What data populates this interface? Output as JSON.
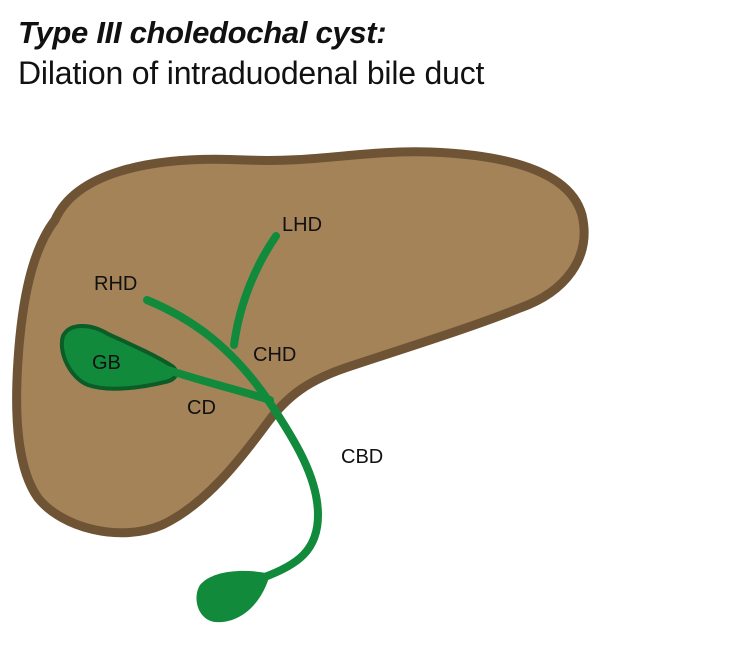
{
  "title": "Type III choledochal cyst:",
  "subtitle": "Dilation of intraduodenal bile duct",
  "labels": {
    "lhd": "LHD",
    "rhd": "RHD",
    "gb": "GB",
    "chd": "CHD",
    "cd": "CD",
    "cbd": "CBD"
  },
  "colors": {
    "liver_fill": "#a58359",
    "liver_outline": "#6e5435",
    "duct": "#118a3c",
    "gallbladder_outline": "#0c5c28",
    "text": "#111111"
  }
}
